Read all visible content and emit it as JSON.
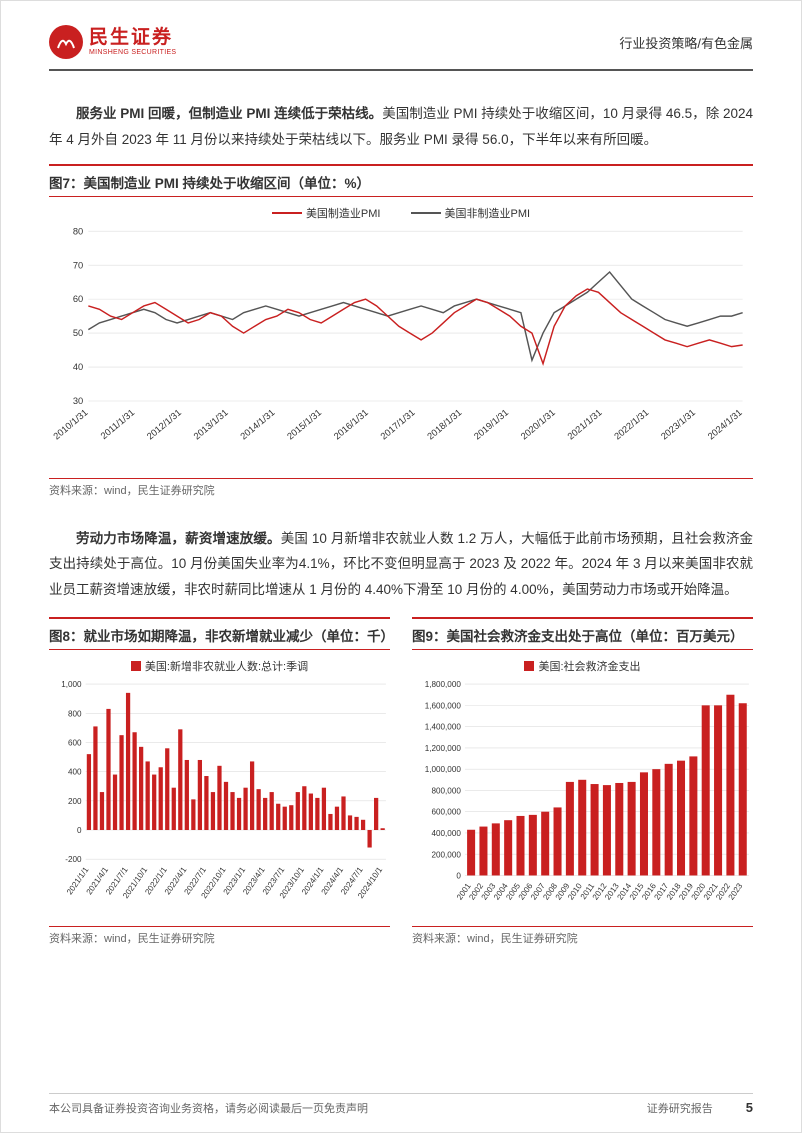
{
  "header": {
    "company_cn": "民生证券",
    "company_en": "MINSHENG SECURITIES",
    "right": "行业投资策略/有色金属"
  },
  "para1": {
    "boldLead": "服务业 PMI 回暖，但制造业 PMI 连续低于荣枯线。",
    "body": "美国制造业 PMI 持续处于收缩区间，10 月录得 46.5，除 2024 年 4 月外自 2023 年 11 月份以来持续处于荣枯线以下。服务业 PMI 录得 56.0，下半年以来有所回暖。"
  },
  "fig7": {
    "title": "图7：美国制造业 PMI 持续处于收缩区间（单位：%）",
    "legend": [
      {
        "label": "美国制造业PMI",
        "color": "#c92020"
      },
      {
        "label": "美国非制造业PMI",
        "color": "#555555"
      }
    ],
    "ylim": [
      30,
      80
    ],
    "yticks": [
      30,
      40,
      50,
      60,
      70,
      80
    ],
    "xlabels": [
      "2010/1/31",
      "2011/1/31",
      "2012/1/31",
      "2013/1/31",
      "2014/1/31",
      "2015/1/31",
      "2016/1/31",
      "2017/1/31",
      "2018/1/31",
      "2019/1/31",
      "2020/1/31",
      "2021/1/31",
      "2022/1/31",
      "2023/1/31",
      "2024/1/31"
    ],
    "series1": [
      58,
      57,
      55,
      54,
      56,
      58,
      59,
      57,
      55,
      53,
      54,
      56,
      55,
      52,
      50,
      52,
      54,
      55,
      57,
      56,
      54,
      53,
      55,
      57,
      59,
      60,
      58,
      55,
      52,
      50,
      48,
      50,
      53,
      56,
      58,
      60,
      59,
      57,
      55,
      52,
      50,
      41,
      52,
      58,
      61,
      63,
      62,
      59,
      56,
      54,
      52,
      50,
      48,
      47,
      46,
      47,
      48,
      47,
      46,
      46.5
    ],
    "series2": [
      51,
      53,
      54,
      55,
      56,
      57,
      56,
      54,
      53,
      54,
      55,
      56,
      55,
      54,
      56,
      57,
      58,
      57,
      56,
      55,
      56,
      57,
      58,
      59,
      58,
      57,
      56,
      55,
      56,
      57,
      58,
      57,
      56,
      58,
      59,
      60,
      59,
      58,
      57,
      56,
      42,
      50,
      56,
      58,
      60,
      62,
      65,
      68,
      64,
      60,
      58,
      56,
      54,
      53,
      52,
      53,
      54,
      55,
      55,
      56
    ],
    "source": "资料来源：wind，民生证券研究院",
    "grid_color": "#dddddd",
    "bg": "#ffffff",
    "axis_fontsize": 9
  },
  "para2": {
    "boldLead": "劳动力市场降温，薪资增速放缓。",
    "body": "美国 10 月新增非农就业人数 1.2 万人，大幅低于此前市场预期，且社会救济金支出持续处于高位。10 月份美国失业率为4.1%，环比不变但明显高于 2023 及 2022 年。2024 年 3 月以来美国非农就业员工薪资增速放缓，非农时薪同比增速从 1 月份的 4.40%下滑至 10 月份的 4.00%，美国劳动力市场或开始降温。"
  },
  "fig8": {
    "title": "图8：就业市场如期降温，非农新增就业减少（单位：千）",
    "legend": [
      {
        "label": "美国:新增非农就业人数:总计:季调",
        "color": "#c92020"
      }
    ],
    "ylim": [
      -200,
      1000
    ],
    "yticks": [
      -200,
      0,
      200,
      400,
      600,
      800,
      1000
    ],
    "xlabels": [
      "2021/1/1",
      "2021/4/1",
      "2021/7/1",
      "2021/10/1",
      "2022/1/1",
      "2022/4/1",
      "2022/7/1",
      "2022/10/1",
      "2023/1/1",
      "2023/4/1",
      "2023/7/1",
      "2023/10/1",
      "2024/1/1",
      "2024/4/1",
      "2024/7/1",
      "2024/10/1"
    ],
    "values": [
      520,
      710,
      260,
      830,
      380,
      650,
      940,
      670,
      570,
      470,
      380,
      430,
      560,
      290,
      690,
      480,
      210,
      480,
      370,
      260,
      440,
      330,
      260,
      220,
      290,
      470,
      280,
      220,
      260,
      180,
      160,
      170,
      260,
      300,
      250,
      220,
      290,
      110,
      160,
      230,
      100,
      90,
      70,
      -120,
      220,
      12
    ],
    "source": "资料来源：wind，民生证券研究院",
    "grid_color": "#dddddd",
    "bar_color": "#c92020",
    "bg": "#ffffff",
    "axis_fontsize": 8
  },
  "fig9": {
    "title": "图9：美国社会救济金支出处于高位（单位：百万美元）",
    "legend": [
      {
        "label": "美国:社会救济金支出",
        "color": "#c92020"
      }
    ],
    "ylim": [
      0,
      1800000
    ],
    "yticks": [
      0,
      200000,
      400000,
      600000,
      800000,
      1000000,
      1200000,
      1400000,
      1600000,
      1800000
    ],
    "xlabels": [
      "2001",
      "2002",
      "2003",
      "2004",
      "2005",
      "2006",
      "2007",
      "2008",
      "2009",
      "2010",
      "2011",
      "2012",
      "2013",
      "2014",
      "2015",
      "2016",
      "2017",
      "2018",
      "2019",
      "2020",
      "2021",
      "2022",
      "2023"
    ],
    "values": [
      430000,
      460000,
      490000,
      520000,
      560000,
      570000,
      600000,
      640000,
      880000,
      900000,
      860000,
      850000,
      870000,
      880000,
      970000,
      1000000,
      1050000,
      1080000,
      1120000,
      1600000,
      1600000,
      1700000,
      1620000
    ],
    "source": "资料来源：wind，民生证券研究院",
    "grid_color": "#dddddd",
    "bar_color": "#c92020",
    "bg": "#ffffff",
    "axis_fontsize": 8
  },
  "footer": {
    "left": "本公司具备证券投资咨询业务资格，请务必阅读最后一页免责声明",
    "right": "证券研究报告",
    "page": "5"
  }
}
